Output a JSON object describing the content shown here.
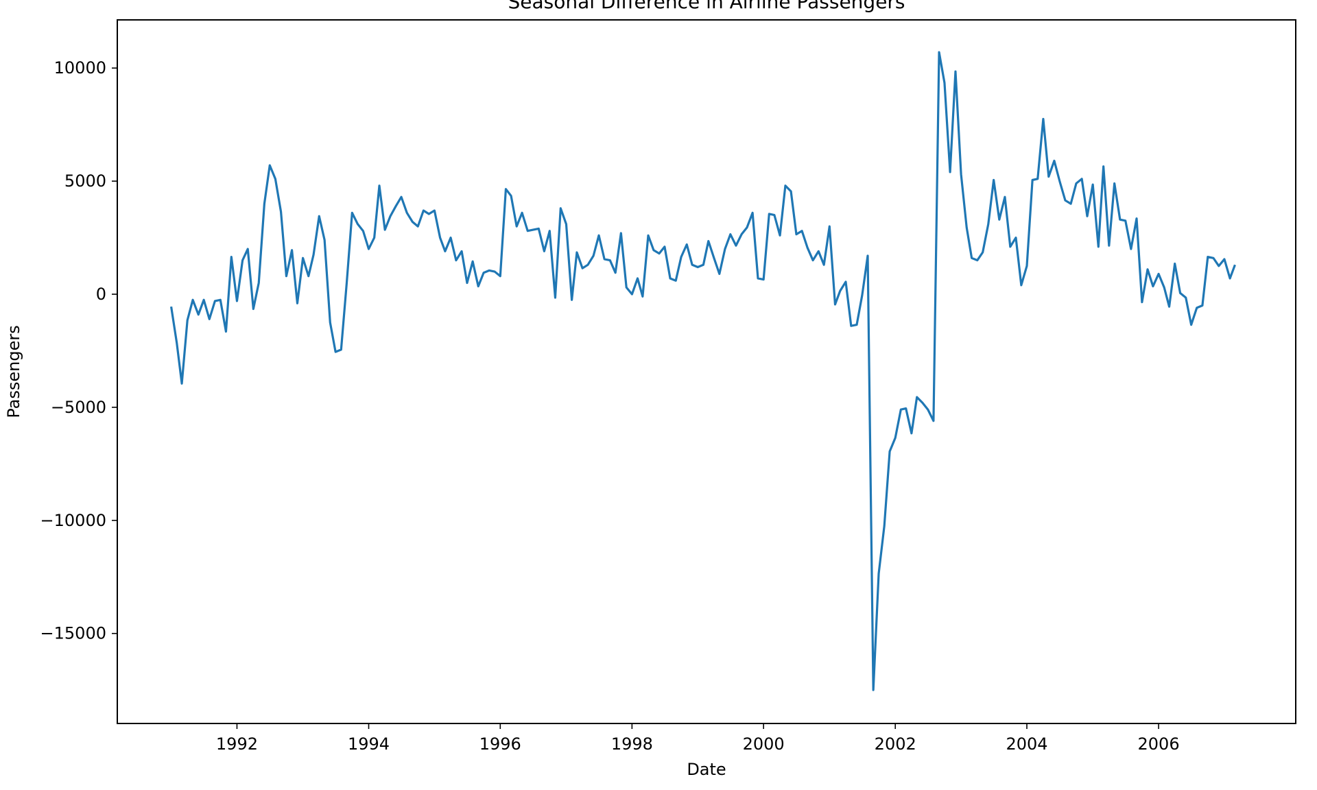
{
  "chart_data": {
    "type": "line",
    "title": "Seasonal Difference in Airline Passengers",
    "xlabel": "Date",
    "ylabel": "Passengers",
    "xlim": [
      "1990-03-08",
      "2008-02-01"
    ],
    "ylim": [
      -18980,
      12130
    ],
    "grid": false,
    "x_ticks": [
      {
        "date": "1992-01-01",
        "label": "1992"
      },
      {
        "date": "1994-01-01",
        "label": "1994"
      },
      {
        "date": "1996-01-01",
        "label": "1996"
      },
      {
        "date": "1998-01-01",
        "label": "1998"
      },
      {
        "date": "2000-01-01",
        "label": "2000"
      },
      {
        "date": "2002-01-01",
        "label": "2002"
      },
      {
        "date": "2004-01-01",
        "label": "2004"
      },
      {
        "date": "2006-01-01",
        "label": "2006"
      }
    ],
    "y_ticks": [
      {
        "value": 10000,
        "label": "10000"
      },
      {
        "value": 5000,
        "label": "5000"
      },
      {
        "value": 0,
        "label": "0"
      },
      {
        "value": -5000,
        "label": "−5000"
      },
      {
        "value": -10000,
        "label": "−10000"
      },
      {
        "value": -15000,
        "label": "−15000"
      }
    ],
    "series": [
      {
        "color": "#1f77b4",
        "start": "1991-01",
        "values": [
          -550,
          -2150,
          -3950,
          -1150,
          -250,
          -900,
          -250,
          -1100,
          -300,
          -250,
          -1650,
          1650,
          -300,
          1500,
          2000,
          -650,
          500,
          4000,
          5700,
          5100,
          3650,
          800,
          1950,
          -400,
          1600,
          800,
          1750,
          3450,
          2400,
          -1250,
          -2550,
          -2450,
          500,
          3600,
          3100,
          2800,
          2000,
          2500,
          4800,
          2850,
          3450,
          3900,
          4300,
          3600,
          3200,
          3000,
          3700,
          3550,
          3700,
          2500,
          1900,
          2500,
          1500,
          1900,
          500,
          1450,
          350,
          950,
          1050,
          1000,
          800,
          4650,
          4350,
          3000,
          3600,
          2800,
          2850,
          2900,
          1900,
          2800,
          -150,
          3800,
          3100,
          -250,
          1850,
          1150,
          1300,
          1700,
          2600,
          1550,
          1500,
          950,
          2700,
          300,
          0,
          700,
          -100,
          2600,
          1950,
          1800,
          2100,
          700,
          600,
          1650,
          2200,
          1300,
          1200,
          1300,
          2350,
          1600,
          900,
          2000,
          2650,
          2150,
          2650,
          2950,
          3600,
          700,
          650,
          3550,
          3500,
          2600,
          4800,
          4550,
          2650,
          2800,
          2050,
          1500,
          1900,
          1300,
          3000,
          -450,
          150,
          550,
          -1400,
          -1350,
          -50,
          1700,
          -17500,
          -12350,
          -10250,
          -6950,
          -6350,
          -5100,
          -5050,
          -6150,
          -4550,
          -4800,
          -5100,
          -5600,
          10700,
          9350,
          5400,
          9850,
          5300,
          2950,
          1600,
          1500,
          1850,
          3100,
          5050,
          3300,
          4300,
          2100,
          2500,
          400,
          1250,
          5050,
          5100,
          7750,
          5200,
          5900,
          5000,
          4150,
          4000,
          4900,
          5100,
          3450,
          4850,
          2100,
          5650,
          2150,
          4900,
          3300,
          3250,
          2000,
          3350,
          -350,
          1100,
          350,
          900,
          300,
          -550,
          1350,
          50,
          -150,
          -1350,
          -600,
          -500,
          1650,
          1600,
          1250,
          1550,
          700,
          1300
        ]
      }
    ]
  }
}
